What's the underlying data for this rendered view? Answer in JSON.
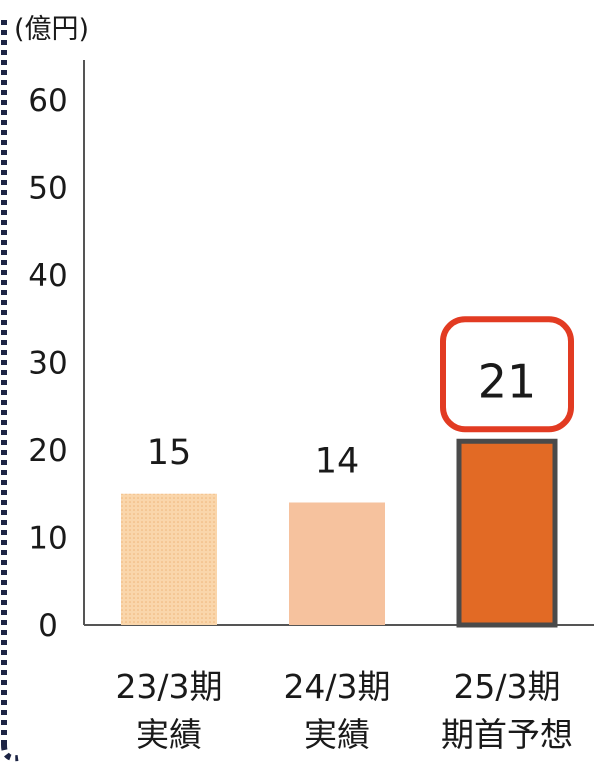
{
  "chart_data": {
    "type": "bar",
    "unit_label": "(億円)",
    "ylim": [
      0,
      60
    ],
    "yticks": [
      0,
      10,
      20,
      30,
      40,
      50,
      60
    ],
    "categories": [
      [
        "23/3期",
        "実績"
      ],
      [
        "24/3期",
        "実績"
      ],
      [
        "25/3期",
        "期首予想"
      ]
    ],
    "values": [
      15,
      14,
      21
    ],
    "value_labels": [
      "15",
      "14",
      "21"
    ],
    "highlight_index": 2,
    "grid": false,
    "legend": "none",
    "colors": {
      "bar_1": "#f8cf9f",
      "bar_2": "#f6c29e",
      "bar_3": "#e26a25",
      "bar_3_border": "#4a4a4a",
      "highlight_box": "#e23b22",
      "axis": "#555555",
      "dotted_border": "#1c2444"
    }
  }
}
